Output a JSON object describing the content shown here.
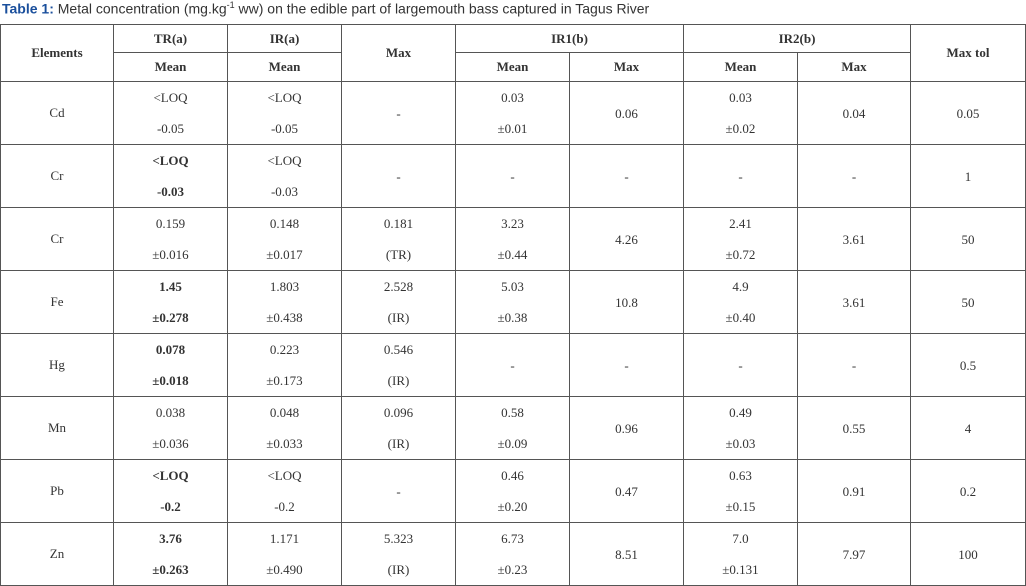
{
  "caption": {
    "label": "Table 1:",
    "text": " Metal concentration (mg.kg",
    "superscript": "-1",
    "text_end": " ww) on the edible part of largemouth bass captured in Tagus River"
  },
  "table": {
    "header_top": [
      "Elements",
      "TR(a)",
      "IR(a)",
      "Max",
      "IR1(b)",
      "IR2(b)",
      "Max tol"
    ],
    "header_sub": [
      "Mean",
      "Mean",
      "Mean",
      "Max",
      "Mean",
      "Max"
    ],
    "rows": [
      {
        "element": "Cd",
        "bold_columns": [],
        "cells": [
          [
            "<LOQ",
            "-0.05"
          ],
          [
            "<LOQ",
            "-0.05"
          ],
          [
            "-"
          ],
          [
            "0.03",
            "±0.01"
          ],
          [
            "0.06"
          ],
          [
            "0.03",
            "±0.02"
          ],
          [
            "0.04"
          ],
          [
            "0.05"
          ]
        ]
      },
      {
        "element": "Cr",
        "bold_columns": [
          0
        ],
        "cells": [
          [
            "<LOQ",
            "-0.03"
          ],
          [
            "<LOQ",
            "-0.03"
          ],
          [
            "-"
          ],
          [
            "-"
          ],
          [
            "-"
          ],
          [
            "-"
          ],
          [
            "-"
          ],
          [
            "1"
          ]
        ]
      },
      {
        "element": "Cr",
        "bold_columns": [],
        "cells": [
          [
            "0.159",
            "±0.016"
          ],
          [
            "0.148",
            "±0.017"
          ],
          [
            "0.181",
            "(TR)"
          ],
          [
            "3.23",
            "±0.44"
          ],
          [
            "4.26"
          ],
          [
            "2.41",
            "±0.72"
          ],
          [
            "3.61"
          ],
          [
            "50"
          ]
        ]
      },
      {
        "element": "Fe",
        "bold_columns": [
          0
        ],
        "cells": [
          [
            "1.45",
            "±0.278"
          ],
          [
            "1.803",
            "±0.438"
          ],
          [
            "2.528",
            "(IR)"
          ],
          [
            "5.03",
            "±0.38"
          ],
          [
            "10.8"
          ],
          [
            "4.9",
            "±0.40"
          ],
          [
            "3.61"
          ],
          [
            "50"
          ]
        ]
      },
      {
        "element": "Hg",
        "bold_columns": [
          0
        ],
        "cells": [
          [
            "0.078",
            "±0.018"
          ],
          [
            "0.223",
            "±0.173"
          ],
          [
            "0.546",
            "(IR)"
          ],
          [
            "-"
          ],
          [
            "-"
          ],
          [
            "-"
          ],
          [
            "-"
          ],
          [
            "0.5"
          ]
        ]
      },
      {
        "element": "Mn",
        "bold_columns": [],
        "cells": [
          [
            "0.038",
            "±0.036"
          ],
          [
            "0.048",
            "±0.033"
          ],
          [
            "0.096",
            "(IR)"
          ],
          [
            "0.58",
            "±0.09"
          ],
          [
            "0.96"
          ],
          [
            "0.49",
            "±0.03"
          ],
          [
            "0.55"
          ],
          [
            "4"
          ]
        ]
      },
      {
        "element": "Pb",
        "bold_columns": [
          0
        ],
        "cells": [
          [
            "<LOQ",
            "-0.2"
          ],
          [
            "<LOQ",
            "-0.2"
          ],
          [
            "-"
          ],
          [
            "0.46",
            "±0.20"
          ],
          [
            "0.47"
          ],
          [
            "0.63",
            "±0.15"
          ],
          [
            "0.91"
          ],
          [
            "0.2"
          ]
        ]
      },
      {
        "element": "Zn",
        "bold_columns": [
          0
        ],
        "cells": [
          [
            "3.76",
            "±0.263"
          ],
          [
            "1.171",
            "±0.490"
          ],
          [
            "5.323",
            "(IR)"
          ],
          [
            "6.73",
            "±0.23"
          ],
          [
            "8.51"
          ],
          [
            "7.0",
            "±0.131"
          ],
          [
            "7.97"
          ],
          [
            "100"
          ]
        ]
      }
    ]
  }
}
